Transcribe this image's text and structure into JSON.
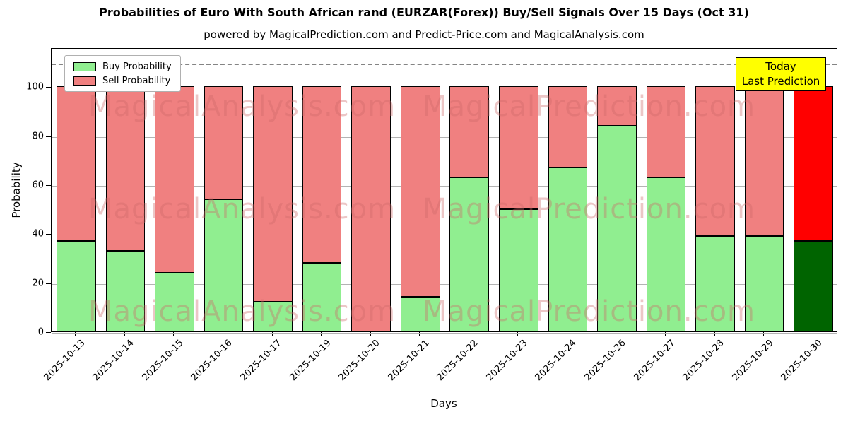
{
  "title": "Probabilities of Euro With South African rand (EURZAR(Forex)) Buy/Sell Signals Over 15 Days (Oct 31)",
  "subtitle": "powered by MagicalPrediction.com and Predict-Price.com and MagicalAnalysis.com",
  "legend": {
    "buy_label": "Buy Probability",
    "sell_label": "Sell Probability"
  },
  "annotation_box": {
    "line1": "Today",
    "line2": "Last Prediction"
  },
  "watermarks": {
    "left": "MagicalAnalysis.com",
    "right": "MagicalPrediction.com"
  },
  "colors": {
    "buy": "#90ee90",
    "sell": "#f08080",
    "today_buy": "#006400",
    "today_sell": "#ff0000",
    "annotation_bg": "#ffff00",
    "grid": "#b3b3b3",
    "dashed_line": "#848484",
    "bar_edge": "#000000"
  },
  "chart_data": {
    "type": "bar",
    "stacked": true,
    "grid": true,
    "legend_position": "upper left",
    "xlabel": "Days",
    "ylabel": "Probability",
    "ylim": [
      0,
      116
    ],
    "yticks": [
      0,
      20,
      40,
      60,
      80,
      100
    ],
    "dashed_line_y": 110,
    "categories": [
      "2025-10-13",
      "2025-10-14",
      "2025-10-15",
      "2025-10-16",
      "2025-10-17",
      "2025-10-19",
      "2025-10-20",
      "2025-10-21",
      "2025-10-22",
      "2025-10-23",
      "2025-10-24",
      "2025-10-26",
      "2025-10-27",
      "2025-10-28",
      "2025-10-29",
      "2025-10-30"
    ],
    "series": [
      {
        "name": "Buy Probability",
        "color": "#90ee90",
        "values": [
          37,
          33,
          24,
          54,
          12,
          28,
          0,
          14,
          63,
          50,
          67,
          84,
          63,
          39,
          39,
          37
        ]
      },
      {
        "name": "Sell Probability",
        "color": "#f08080",
        "values": [
          63,
          67,
          76,
          46,
          88,
          72,
          100,
          86,
          37,
          50,
          33,
          16,
          37,
          61,
          61,
          63
        ]
      }
    ],
    "today_bar": {
      "index": 15,
      "buy_color": "#006400",
      "sell_color": "#ff0000"
    }
  }
}
